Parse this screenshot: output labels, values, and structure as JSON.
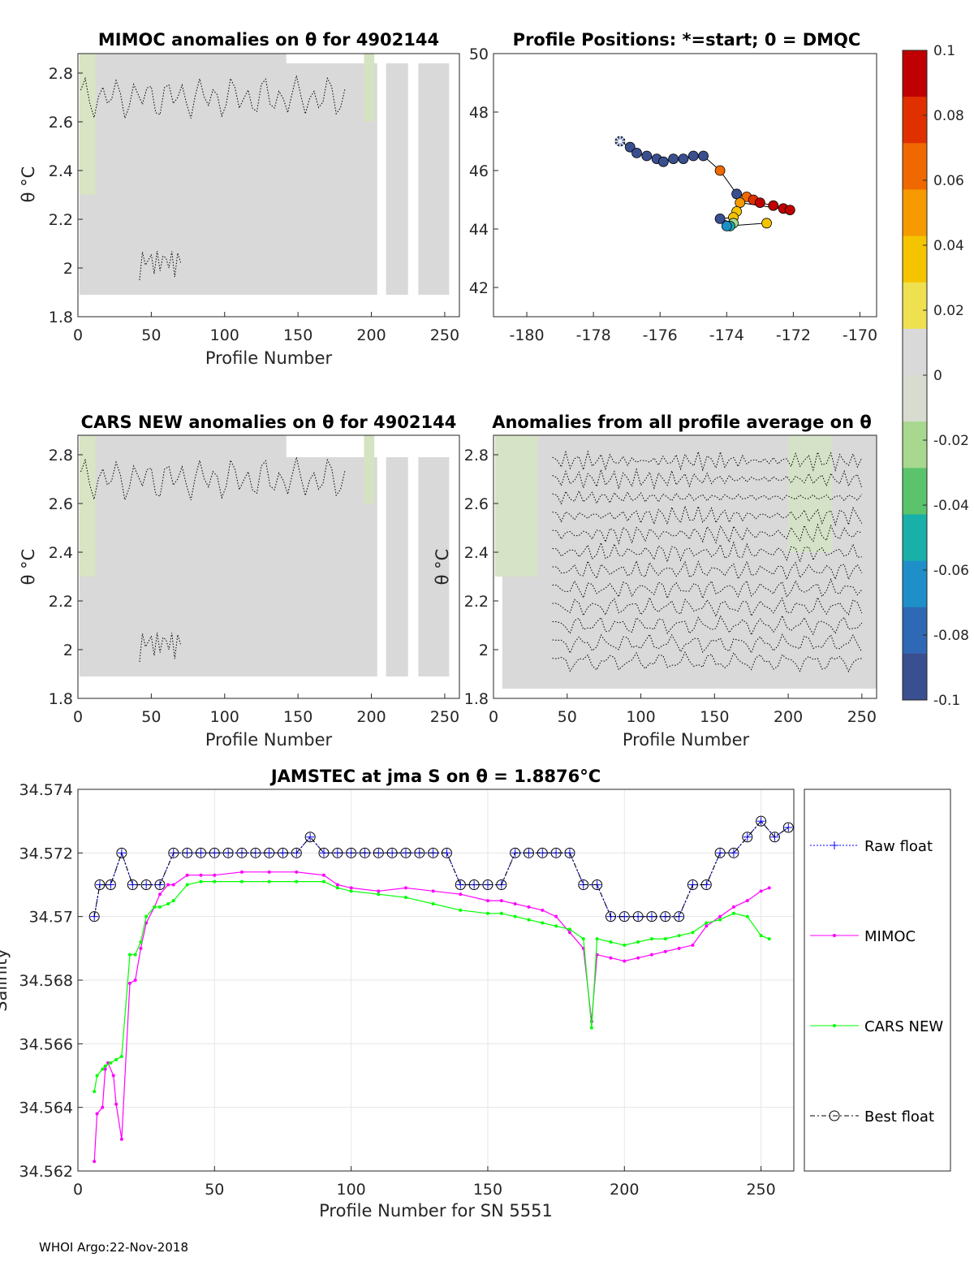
{
  "footer": "WHOI Argo:22-Nov-2018",
  "chart_data": [
    {
      "type": "heatmap",
      "title": "MIMOC anomalies on θ  for 4902144",
      "xlabel": "Profile Number",
      "ylabel": "θ °C",
      "xlim": [
        0,
        260
      ],
      "ylim": [
        1.8,
        2.88
      ],
      "xticks": [
        "0",
        "50",
        "100",
        "150",
        "200",
        "250"
      ],
      "yticks": [
        "1.8",
        "2",
        "2.2",
        "2.4",
        "2.6",
        "2.8"
      ]
    },
    {
      "type": "scatter",
      "title": "Profile Positions: *=start; 0 = DMQC",
      "xlim": [
        -181,
        -169.5
      ],
      "ylim": [
        41,
        50
      ],
      "xticks": [
        "-180",
        "-178",
        "-176",
        "-174",
        "-172",
        "-170"
      ],
      "yticks": [
        "42",
        "44",
        "46",
        "48",
        "50"
      ],
      "start": {
        "lon": -177.2,
        "lat": 47.0
      },
      "points": [
        {
          "lon": -177.2,
          "lat": 47.0,
          "v": -0.09
        },
        {
          "lon": -176.9,
          "lat": 46.8,
          "v": -0.09
        },
        {
          "lon": -176.7,
          "lat": 46.6,
          "v": -0.09
        },
        {
          "lon": -176.4,
          "lat": 46.5,
          "v": -0.09
        },
        {
          "lon": -176.1,
          "lat": 46.4,
          "v": -0.09
        },
        {
          "lon": -175.9,
          "lat": 46.3,
          "v": -0.09
        },
        {
          "lon": -175.6,
          "lat": 46.4,
          "v": -0.09
        },
        {
          "lon": -175.3,
          "lat": 46.4,
          "v": -0.09
        },
        {
          "lon": -175.0,
          "lat": 46.5,
          "v": -0.09
        },
        {
          "lon": -174.7,
          "lat": 46.5,
          "v": -0.09
        },
        {
          "lon": -174.2,
          "lat": 46.0,
          "v": 0.06
        },
        {
          "lon": -173.7,
          "lat": 45.2,
          "v": -0.09
        },
        {
          "lon": -173.4,
          "lat": 45.1,
          "v": 0.07
        },
        {
          "lon": -173.2,
          "lat": 45.0,
          "v": 0.08
        },
        {
          "lon": -173.0,
          "lat": 44.9,
          "v": 0.09
        },
        {
          "lon": -172.6,
          "lat": 44.8,
          "v": 0.1
        },
        {
          "lon": -172.3,
          "lat": 44.7,
          "v": 0.1
        },
        {
          "lon": -172.1,
          "lat": 44.65,
          "v": 0.1
        },
        {
          "lon": -173.6,
          "lat": 44.9,
          "v": 0.05
        },
        {
          "lon": -173.7,
          "lat": 44.6,
          "v": 0.04
        },
        {
          "lon": -173.8,
          "lat": 44.4,
          "v": 0.03
        },
        {
          "lon": -174.2,
          "lat": 44.35,
          "v": -0.09
        },
        {
          "lon": -173.8,
          "lat": 44.2,
          "v": -0.02
        },
        {
          "lon": -173.9,
          "lat": 44.1,
          "v": -0.05
        },
        {
          "lon": -174.0,
          "lat": 44.1,
          "v": -0.06
        },
        {
          "lon": -172.8,
          "lat": 44.2,
          "v": 0.04
        }
      ]
    },
    {
      "type": "heatmap",
      "title": "CARS NEW anomalies on θ for 4902144",
      "xlabel": "Profile Number",
      "ylabel": "θ °C",
      "xlim": [
        0,
        260
      ],
      "ylim": [
        1.8,
        2.88
      ],
      "xticks": [
        "0",
        "50",
        "100",
        "150",
        "200",
        "250"
      ],
      "yticks": [
        "1.8",
        "2",
        "2.2",
        "2.4",
        "2.6",
        "2.8"
      ]
    },
    {
      "type": "heatmap",
      "title": "Anomalies from all profile average on θ",
      "xlabel": "Profile Number",
      "ylabel": "θ °C",
      "xlim": [
        0,
        260
      ],
      "ylim": [
        1.8,
        2.88
      ],
      "xticks": [
        "0",
        "50",
        "100",
        "150",
        "200",
        "250"
      ],
      "yticks": [
        "1.8",
        "2",
        "2.2",
        "2.4",
        "2.6",
        "2.8"
      ]
    },
    {
      "type": "line",
      "title": "JAMSTEC at jma S on θ = 1.8876°C",
      "xlabel": "Profile Number for SN 5551",
      "ylabel": "Salinity",
      "xlim": [
        0,
        262
      ],
      "ylim": [
        34.562,
        34.574
      ],
      "xticks": [
        "0",
        "50",
        "100",
        "150",
        "200",
        "250"
      ],
      "yticks": [
        "34.562",
        "34.564",
        "34.566",
        "34.568",
        "34.57",
        "34.572",
        "34.574"
      ],
      "grid": true,
      "legend": "right-outside",
      "series": [
        {
          "name": "Raw float",
          "color": "#0000ff",
          "x": [
            6,
            8,
            12,
            16,
            20,
            25,
            30,
            35,
            40,
            45,
            50,
            55,
            60,
            65,
            70,
            75,
            80,
            85,
            90,
            95,
            100,
            105,
            110,
            115,
            120,
            125,
            130,
            135,
            140,
            145,
            150,
            155,
            160,
            165,
            170,
            175,
            180,
            185,
            190,
            195,
            200,
            205,
            210,
            215,
            220,
            225,
            230,
            235,
            240,
            245,
            250,
            255,
            260
          ],
          "y": [
            34.57,
            34.571,
            34.571,
            34.572,
            34.571,
            34.571,
            34.571,
            34.572,
            34.572,
            34.572,
            34.572,
            34.572,
            34.572,
            34.572,
            34.572,
            34.572,
            34.572,
            34.5725,
            34.572,
            34.572,
            34.572,
            34.572,
            34.572,
            34.572,
            34.572,
            34.572,
            34.572,
            34.572,
            34.571,
            34.571,
            34.571,
            34.571,
            34.572,
            34.572,
            34.572,
            34.572,
            34.572,
            34.571,
            34.571,
            34.57,
            34.57,
            34.57,
            34.57,
            34.57,
            34.57,
            34.571,
            34.571,
            34.572,
            34.572,
            34.5725,
            34.573,
            34.5725,
            34.5728
          ]
        },
        {
          "name": "MIMOC",
          "color": "#ff00ff",
          "x": [
            6,
            7,
            9,
            10,
            11,
            13,
            14,
            16,
            19,
            21,
            23,
            25,
            28,
            30,
            33,
            35,
            40,
            45,
            50,
            60,
            70,
            80,
            90,
            95,
            100,
            110,
            120,
            130,
            140,
            150,
            155,
            160,
            165,
            170,
            175,
            180,
            185,
            188,
            190,
            195,
            200,
            205,
            210,
            215,
            220,
            225,
            230,
            235,
            240,
            245,
            250,
            253
          ],
          "y": [
            34.5623,
            34.5638,
            34.564,
            34.5652,
            34.5654,
            34.565,
            34.5641,
            34.563,
            34.5679,
            34.568,
            34.569,
            34.5698,
            34.5703,
            34.5707,
            34.571,
            34.571,
            34.5713,
            34.5713,
            34.5713,
            34.5714,
            34.5714,
            34.5714,
            34.5713,
            34.571,
            34.5709,
            34.5708,
            34.5709,
            34.5708,
            34.5707,
            34.5705,
            34.5705,
            34.5704,
            34.5703,
            34.5702,
            34.57,
            34.5695,
            34.569,
            34.5667,
            34.5688,
            34.5687,
            34.5686,
            34.5687,
            34.5688,
            34.5689,
            34.569,
            34.5691,
            34.5697,
            34.57,
            34.5703,
            34.5705,
            34.5708,
            34.5709
          ]
        },
        {
          "name": "CARS NEW",
          "color": "#00ff00",
          "x": [
            6,
            7,
            9,
            10,
            12,
            14,
            16,
            19,
            21,
            23,
            25,
            28,
            30,
            33,
            35,
            40,
            45,
            50,
            60,
            70,
            80,
            90,
            95,
            100,
            110,
            120,
            130,
            140,
            150,
            155,
            160,
            165,
            170,
            175,
            180,
            185,
            188,
            190,
            195,
            200,
            205,
            210,
            215,
            220,
            225,
            230,
            235,
            240,
            245,
            250,
            253
          ],
          "y": [
            34.5645,
            34.565,
            34.5652,
            34.5653,
            34.5654,
            34.5655,
            34.5656,
            34.5688,
            34.5688,
            34.5692,
            34.57,
            34.5703,
            34.5703,
            34.5704,
            34.5705,
            34.571,
            34.5711,
            34.5711,
            34.5711,
            34.5711,
            34.5711,
            34.5711,
            34.5709,
            34.5708,
            34.5707,
            34.5706,
            34.5704,
            34.5702,
            34.5701,
            34.5701,
            34.57,
            34.5699,
            34.5698,
            34.5697,
            34.5696,
            34.5693,
            34.5665,
            34.5693,
            34.5692,
            34.5691,
            34.5692,
            34.5693,
            34.5693,
            34.5694,
            34.5695,
            34.5698,
            34.5699,
            34.5701,
            34.57,
            34.5694,
            34.5693
          ]
        },
        {
          "name": "Best float",
          "color": "#000000",
          "x": [
            6,
            8,
            12,
            16,
            20,
            25,
            30,
            35,
            40,
            45,
            50,
            55,
            60,
            65,
            70,
            75,
            80,
            85,
            90,
            95,
            100,
            105,
            110,
            115,
            120,
            125,
            130,
            135,
            140,
            145,
            150,
            155,
            160,
            165,
            170,
            175,
            180,
            185,
            190,
            195,
            200,
            205,
            210,
            215,
            220,
            225,
            230,
            235,
            240,
            245,
            250,
            255,
            260
          ],
          "y": [
            34.57,
            34.571,
            34.571,
            34.572,
            34.571,
            34.571,
            34.571,
            34.572,
            34.572,
            34.572,
            34.572,
            34.572,
            34.572,
            34.572,
            34.572,
            34.572,
            34.572,
            34.5725,
            34.572,
            34.572,
            34.572,
            34.572,
            34.572,
            34.572,
            34.572,
            34.572,
            34.572,
            34.572,
            34.571,
            34.571,
            34.571,
            34.571,
            34.572,
            34.572,
            34.572,
            34.572,
            34.572,
            34.571,
            34.571,
            34.57,
            34.57,
            34.57,
            34.57,
            34.57,
            34.57,
            34.571,
            34.571,
            34.572,
            34.572,
            34.5725,
            34.573,
            34.5725,
            34.5728
          ]
        }
      ]
    }
  ],
  "colorbar": {
    "range": [
      -0.1,
      0.1
    ],
    "ticks": [
      "-0.1",
      "-0.08",
      "-0.06",
      "-0.04",
      "-0.02",
      "0",
      "0.02",
      "0.04",
      "0.06",
      "0.08",
      "0.1"
    ],
    "colors": [
      "#3a4f8f",
      "#2f68b4",
      "#1e8fc8",
      "#18b0a8",
      "#5cc36d",
      "#a8d88e",
      "#d8dcd0",
      "#d9d9d9",
      "#efe050",
      "#f5c400",
      "#f59a00",
      "#f06800",
      "#e03000",
      "#c00000"
    ]
  }
}
